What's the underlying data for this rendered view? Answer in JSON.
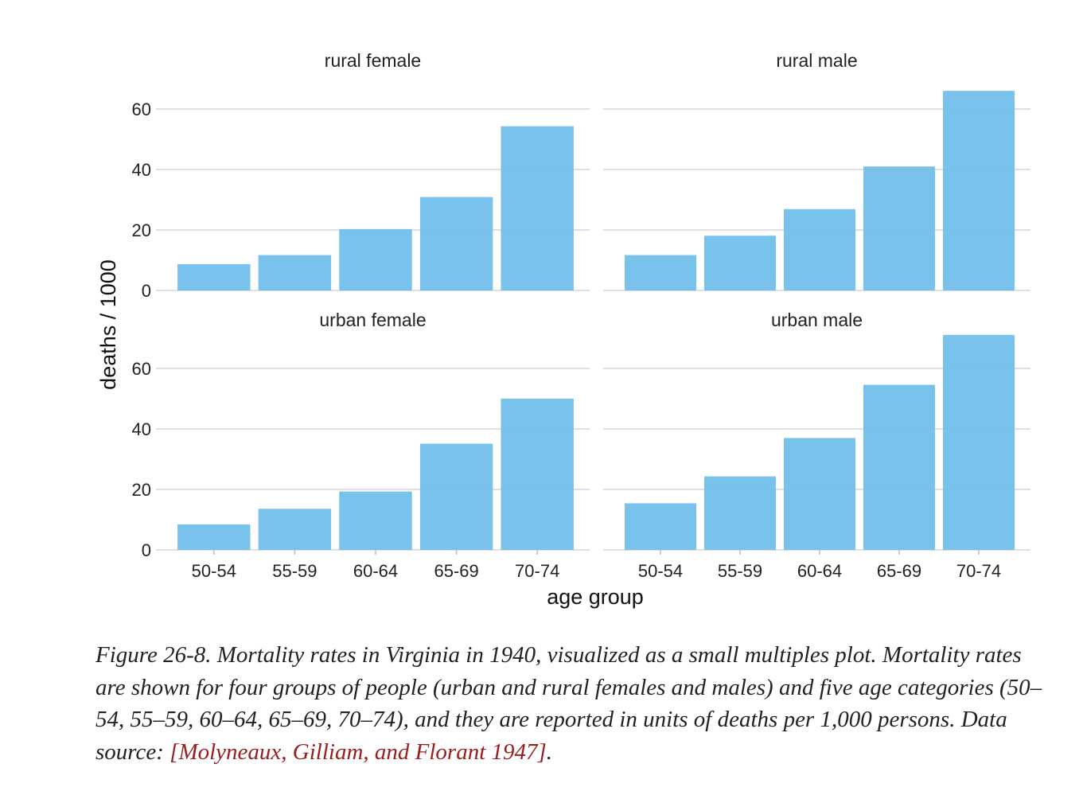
{
  "chart_data": {
    "type": "bar",
    "categories": [
      "50-54",
      "55-59",
      "60-64",
      "65-69",
      "70-74"
    ],
    "xlabel": "age group",
    "ylabel": "deaths / 1000",
    "ylim": [
      0,
      66
    ],
    "yticks": [
      0,
      20,
      40,
      60
    ],
    "grid": "horizontal",
    "facets": [
      {
        "name": "rural female",
        "values": [
          8.7,
          11.7,
          20.3,
          30.9,
          54.3
        ]
      },
      {
        "name": "rural male",
        "values": [
          11.7,
          18.1,
          26.9,
          41.0,
          66.0
        ]
      },
      {
        "name": "urban female",
        "values": [
          8.4,
          13.6,
          19.3,
          35.1,
          50.0
        ]
      },
      {
        "name": "urban male",
        "values": [
          15.4,
          24.3,
          37.0,
          54.6,
          71.1
        ]
      }
    ],
    "bar_color": "#6cbde9"
  },
  "caption": {
    "text": "Figure 26-8. Mortality rates in Virginia in 1940, visualized as a small multiples plot. Mortality rates are shown for four groups of people (urban and rural females and males) and five age categories (50–54, 55–59, 60–64, 65–69, 70–74), and they are reported in units of deaths per 1,000 persons. Data source: ",
    "citation": "[Molyneaux, Gilliam, and Florant 1947]",
    "end": "."
  }
}
